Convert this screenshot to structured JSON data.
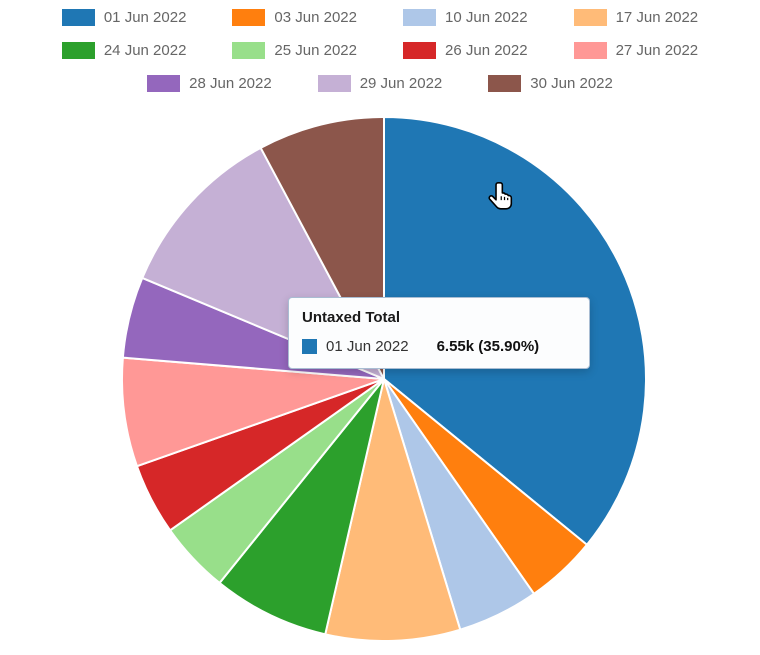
{
  "chart_data": {
    "type": "pie",
    "title": "Untaxed Total",
    "legend_position": "top",
    "start_angle_deg": 0,
    "clockwise": true,
    "unit": "k",
    "series": [
      {
        "label": "01 Jun 2022",
        "color": "#1f77b4",
        "value_k": 6.55,
        "percent": 35.9
      },
      {
        "label": "03 Jun 2022",
        "color": "#ff7f0e",
        "value_k": 0.8,
        "percent": 4.4
      },
      {
        "label": "10 Jun 2022",
        "color": "#aec7e8",
        "value_k": 0.91,
        "percent": 5.0
      },
      {
        "label": "17 Jun 2022",
        "color": "#ffbb78",
        "value_k": 1.51,
        "percent": 8.3
      },
      {
        "label": "24 Jun 2022",
        "color": "#2ca02c",
        "value_k": 1.31,
        "percent": 7.2
      },
      {
        "label": "25 Jun 2022",
        "color": "#98df8a",
        "value_k": 0.8,
        "percent": 4.4
      },
      {
        "label": "26 Jun 2022",
        "color": "#d62728",
        "value_k": 0.8,
        "percent": 4.4
      },
      {
        "label": "27 Jun 2022",
        "color": "#ff9896",
        "value_k": 1.22,
        "percent": 6.7
      },
      {
        "label": "28 Jun 2022",
        "color": "#9467bd",
        "value_k": 0.91,
        "percent": 5.0
      },
      {
        "label": "29 Jun 2022",
        "color": "#c5b0d5",
        "value_k": 1.99,
        "percent": 10.9
      },
      {
        "label": "30 Jun 2022",
        "color": "#8c564b",
        "value_k": 1.42,
        "percent": 7.8
      }
    ]
  },
  "tooltip": {
    "title": "Untaxed Total",
    "series_label": "01 Jun 2022",
    "series_color": "#1f77b4",
    "value_text": "6.55k (35.90%)"
  },
  "cursor": {
    "icon": "hand-pointer"
  },
  "colors": {
    "legend_text": "#666666",
    "slice_border": "#ffffff",
    "tooltip_border": "#a9bdd3",
    "background": "#ffffff"
  }
}
